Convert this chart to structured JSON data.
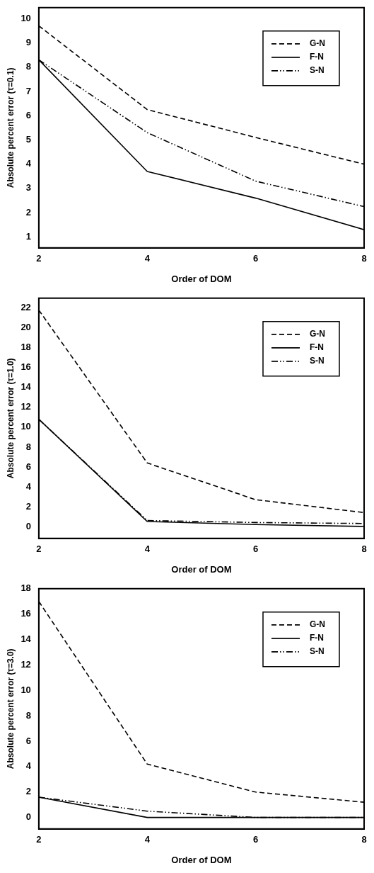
{
  "chart_data": [
    {
      "type": "line",
      "x": [
        2,
        4,
        6,
        8
      ],
      "xlabel": "Order of DOM",
      "ylabel": "Absolute percent error (τ=0.1)",
      "xlim": [
        2,
        8
      ],
      "xticks": [
        2,
        4,
        6,
        8
      ],
      "ylim": [
        0.55,
        10.45
      ],
      "yticks": [
        1,
        2,
        3,
        4,
        5,
        6,
        7,
        8,
        9,
        10
      ],
      "legend": "top right",
      "grid": false,
      "marker": "none",
      "series": [
        {
          "name": "G-N",
          "color": "#000000",
          "line_style": "dashed",
          "values": [
            9.7,
            6.25,
            5.1,
            4.0
          ]
        },
        {
          "name": "F-N",
          "color": "#000000",
          "line_style": "solid",
          "values": [
            8.3,
            3.7,
            2.6,
            1.3
          ]
        },
        {
          "name": "S-N",
          "color": "#000000",
          "line_style": "dotted",
          "values": [
            8.3,
            5.3,
            3.3,
            2.25
          ]
        }
      ]
    },
    {
      "type": "line",
      "x": [
        2,
        4,
        6,
        8
      ],
      "xlabel": "Order of DOM",
      "ylabel": "Absolute percent error (τ=1.0)",
      "xlim": [
        2,
        8
      ],
      "xticks": [
        2,
        4,
        6,
        8
      ],
      "ylim": [
        -1.2,
        23
      ],
      "yticks": [
        0,
        2,
        4,
        6,
        8,
        10,
        12,
        14,
        16,
        18,
        20,
        22
      ],
      "legend": "top right",
      "grid": false,
      "marker": "none",
      "series": [
        {
          "name": "G-N",
          "color": "#000000",
          "line_style": "dashed",
          "values": [
            21.8,
            6.4,
            2.7,
            1.4
          ]
        },
        {
          "name": "F-N",
          "color": "#000000",
          "line_style": "solid",
          "values": [
            10.8,
            0.5,
            0.2,
            0
          ]
        },
        {
          "name": "S-N",
          "color": "#000000",
          "line_style": "dotted",
          "values": [
            10.8,
            0.6,
            0.4,
            0.3
          ]
        }
      ]
    },
    {
      "type": "line",
      "x": [
        2,
        4,
        6,
        8
      ],
      "xlabel": "Order of DOM",
      "ylabel": "Absolute percent error (τ=3.0)",
      "xlim": [
        2,
        8
      ],
      "xticks": [
        2,
        4,
        6,
        8
      ],
      "ylim": [
        -0.9,
        18
      ],
      "yticks": [
        0,
        2,
        4,
        6,
        8,
        10,
        12,
        14,
        16,
        18
      ],
      "legend": "top right",
      "grid": false,
      "marker": "none",
      "series": [
        {
          "name": "G-N",
          "color": "#000000",
          "line_style": "dashed",
          "values": [
            17,
            4.2,
            2,
            1.2
          ]
        },
        {
          "name": "F-N",
          "color": "#000000",
          "line_style": "solid",
          "values": [
            1.6,
            0,
            0,
            0
          ]
        },
        {
          "name": "S-N",
          "color": "#000000",
          "line_style": "dotted",
          "values": [
            1.6,
            0.5,
            0,
            0
          ]
        }
      ]
    }
  ]
}
